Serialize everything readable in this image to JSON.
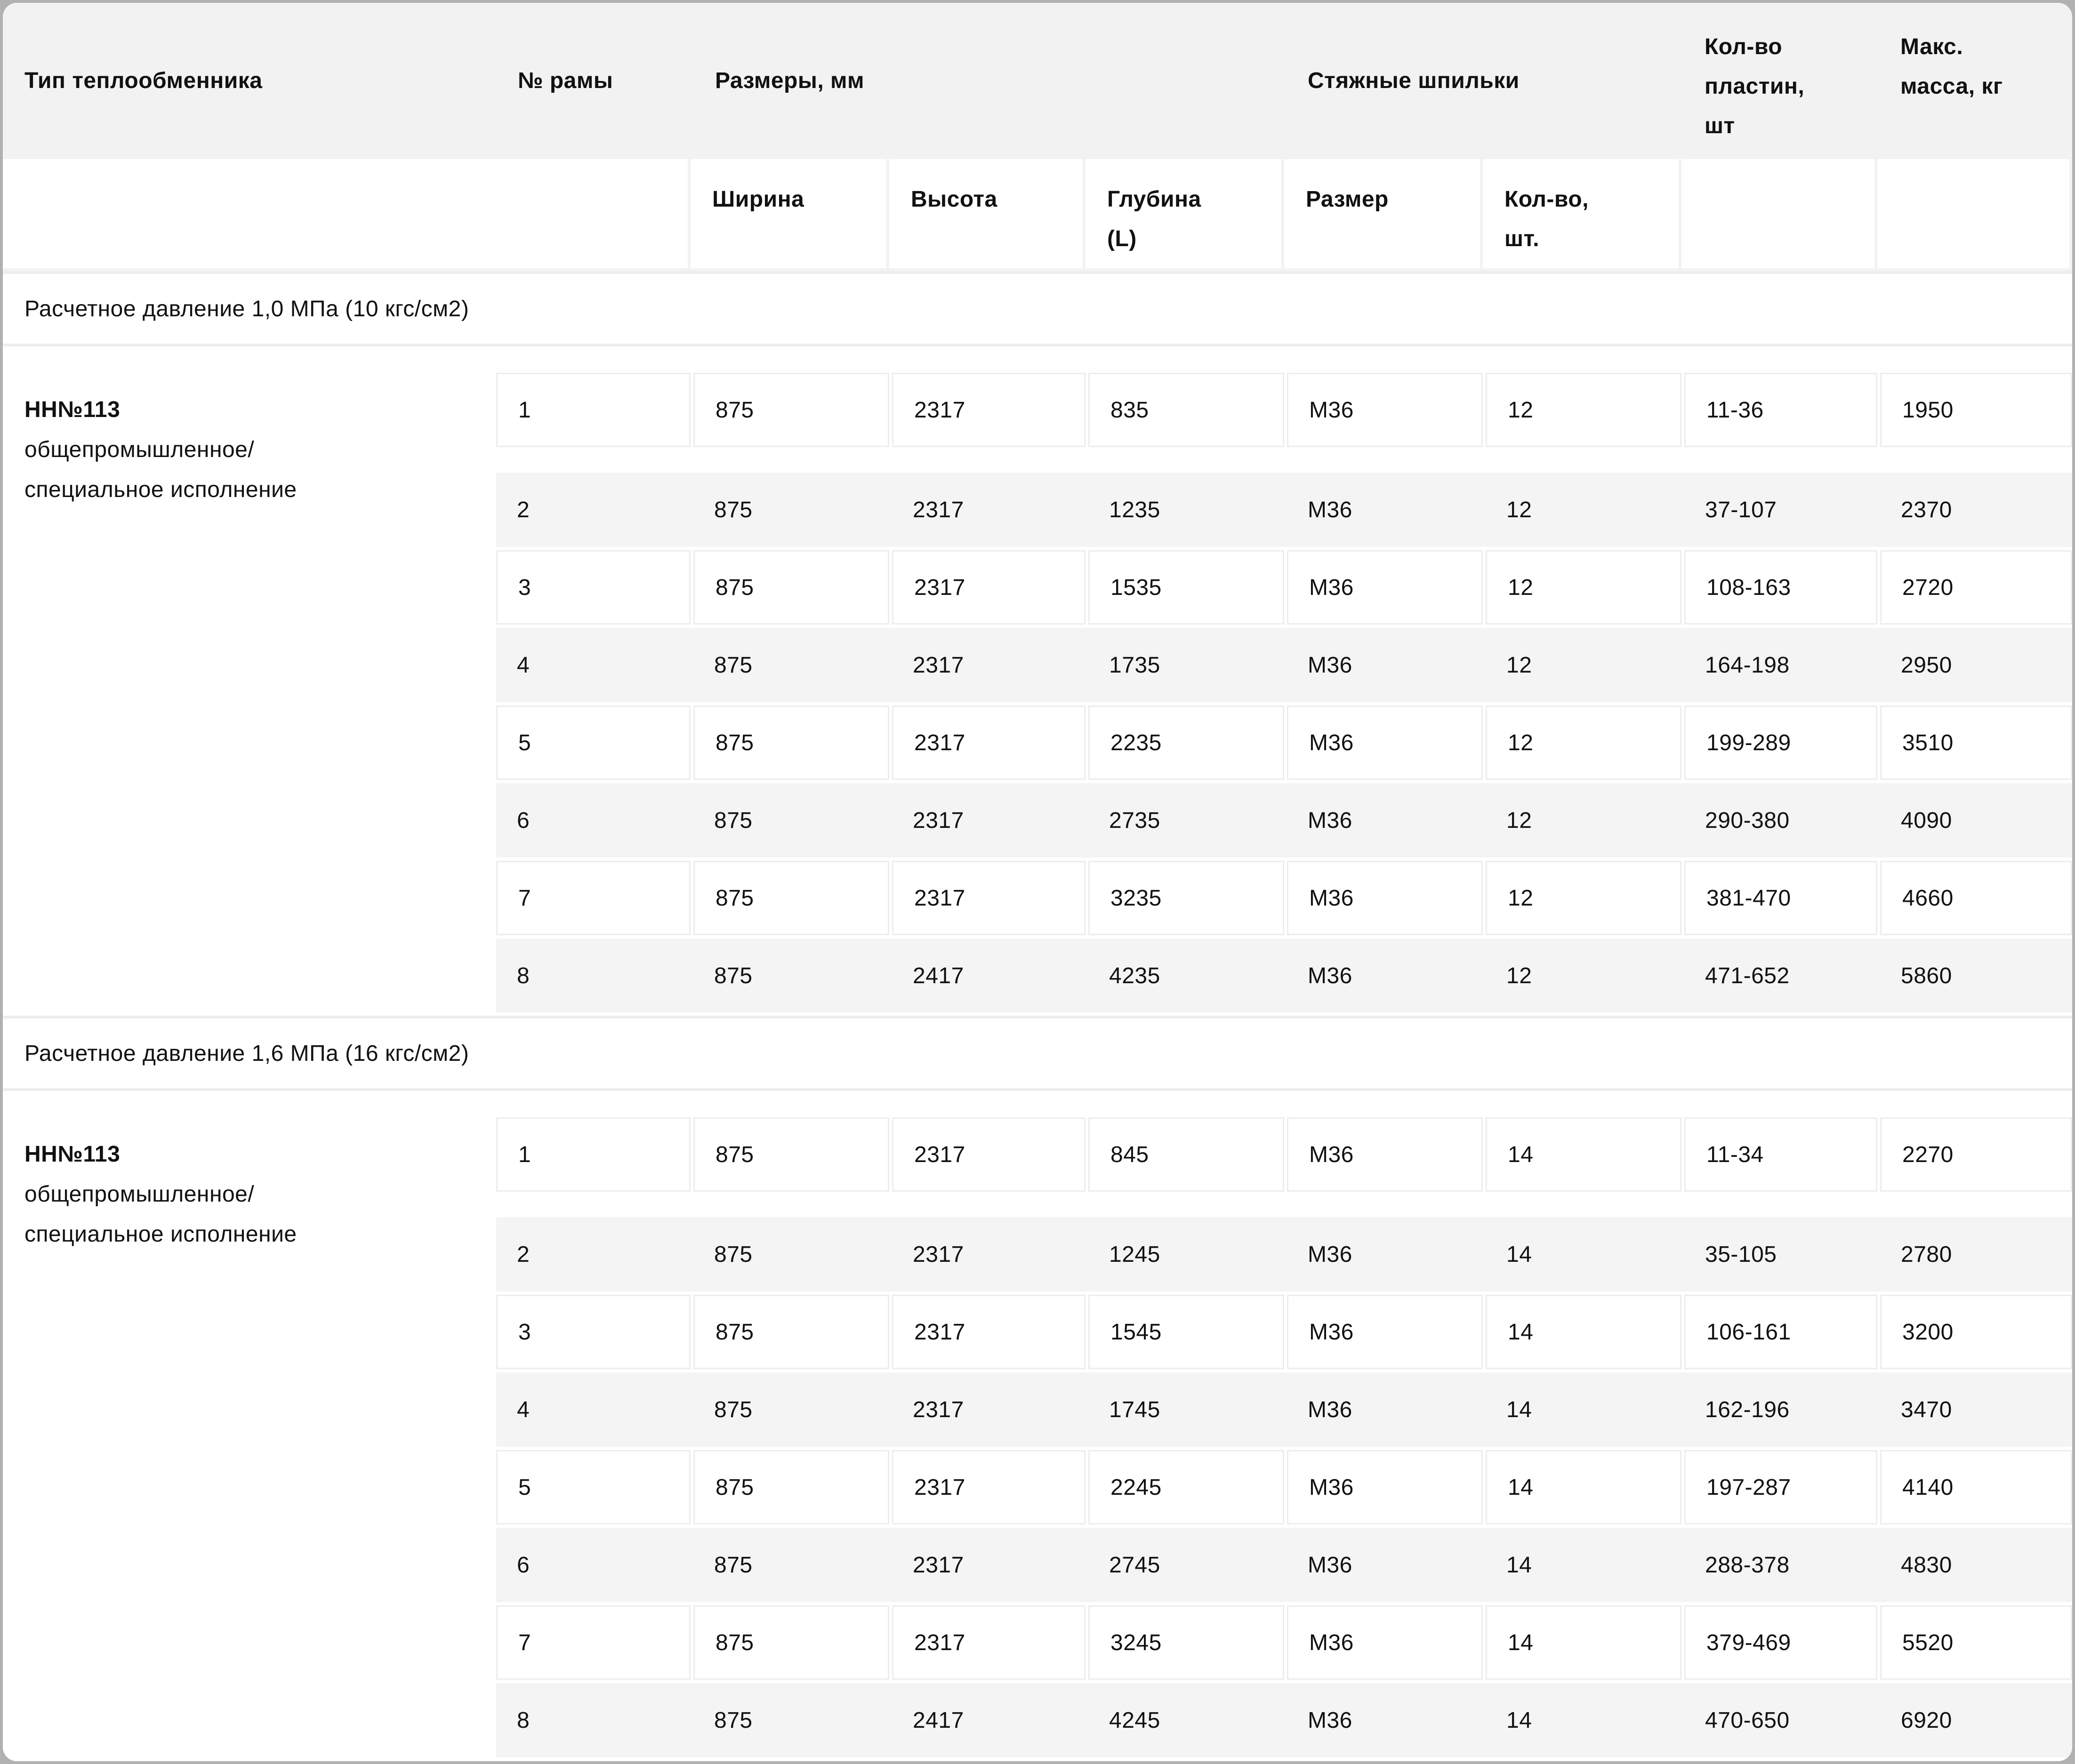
{
  "theme": {
    "outer_border": "#b1b1b1",
    "header_bg": "#f2f2f2",
    "row_alt_bg": "#f4f4f4",
    "cell_border": "#ededed",
    "text": "#111111"
  },
  "header": {
    "col_type": "Тип теплообменника",
    "col_frame": "№ рамы",
    "col_dimensions": "Размеры, мм",
    "col_studs": "Стяжные шпильки",
    "col_plates": "Кол-во пластин, шт",
    "col_mass": "Макс. масса, кг",
    "sub_width": "Ширина",
    "sub_height": "Высота",
    "sub_depth": "Глубина (L)",
    "sub_stud_size": "Размер",
    "sub_stud_qty": "Кол-во, шт."
  },
  "sections": [
    {
      "title": "Расчетное давление 1,0 МПа (10 кгс/см2)",
      "type_name": "НН№113",
      "type_desc_line1": "общепромышленное/",
      "type_desc_line2": "специальное исполнение",
      "rows": [
        [
          "1",
          "875",
          "2317",
          "835",
          "М36",
          "12",
          "11-36",
          "1950"
        ],
        [
          "2",
          "875",
          "2317",
          "1235",
          "М36",
          "12",
          "37-107",
          "2370"
        ],
        [
          "3",
          "875",
          "2317",
          "1535",
          "М36",
          "12",
          "108-163",
          "2720"
        ],
        [
          "4",
          "875",
          "2317",
          "1735",
          "М36",
          "12",
          "164-198",
          "2950"
        ],
        [
          "5",
          "875",
          "2317",
          "2235",
          "М36",
          "12",
          "199-289",
          "3510"
        ],
        [
          "6",
          "875",
          "2317",
          "2735",
          "М36",
          "12",
          "290-380",
          "4090"
        ],
        [
          "7",
          "875",
          "2317",
          "3235",
          "М36",
          "12",
          "381-470",
          "4660"
        ],
        [
          "8",
          "875",
          "2417",
          "4235",
          "М36",
          "12",
          "471-652",
          "5860"
        ]
      ]
    },
    {
      "title": "Расчетное давление 1,6 МПа (16 кгс/см2)",
      "type_name": "НН№113",
      "type_desc_line1": "общепромышленное/",
      "type_desc_line2": "специальное исполнение",
      "rows": [
        [
          "1",
          "875",
          "2317",
          "845",
          "М36",
          "14",
          "11-34",
          "2270"
        ],
        [
          "2",
          "875",
          "2317",
          "1245",
          "М36",
          "14",
          "35-105",
          "2780"
        ],
        [
          "3",
          "875",
          "2317",
          "1545",
          "М36",
          "14",
          "106-161",
          "3200"
        ],
        [
          "4",
          "875",
          "2317",
          "1745",
          "М36",
          "14",
          "162-196",
          "3470"
        ],
        [
          "5",
          "875",
          "2317",
          "2245",
          "М36",
          "14",
          "197-287",
          "4140"
        ],
        [
          "6",
          "875",
          "2317",
          "2745",
          "М36",
          "14",
          "288-378",
          "4830"
        ],
        [
          "7",
          "875",
          "2317",
          "3245",
          "М36",
          "14",
          "379-469",
          "5520"
        ],
        [
          "8",
          "875",
          "2417",
          "4245",
          "М36",
          "14",
          "470-650",
          "6920"
        ]
      ]
    }
  ]
}
